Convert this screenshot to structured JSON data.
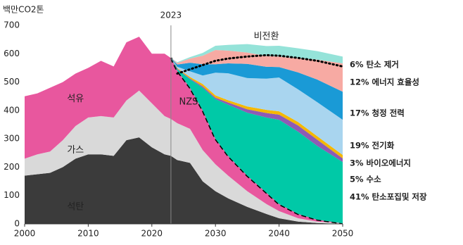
{
  "chart_data": {
    "type": "stacked_area",
    "y_axis_title": "백만CO2톤",
    "x": [
      2000,
      2002,
      2004,
      2006,
      2008,
      2010,
      2012,
      2014,
      2016,
      2018,
      2020,
      2022,
      2023,
      2024,
      2026,
      2028,
      2030,
      2032,
      2035,
      2038,
      2040,
      2043,
      2046,
      2050
    ],
    "xlim": [
      2000,
      2050
    ],
    "xticks": [
      2000,
      2010,
      2020,
      2030,
      2040,
      2050
    ],
    "ylim": [
      0,
      700
    ],
    "yticks": [
      0,
      100,
      200,
      300,
      400,
      500,
      600,
      700
    ],
    "grid": false,
    "reference_x": 2023,
    "nzs_label": "NZS",
    "series": [
      {
        "name": "석탄",
        "color": "#3b3b3b",
        "values": [
          170,
          175,
          180,
          200,
          230,
          245,
          245,
          240,
          295,
          305,
          270,
          245,
          240,
          225,
          215,
          150,
          115,
          90,
          60,
          35,
          20,
          8,
          3,
          0
        ]
      },
      {
        "name": "가스",
        "color": "#d9d9d9",
        "values": [
          60,
          70,
          75,
          95,
          115,
          130,
          135,
          135,
          140,
          165,
          155,
          135,
          130,
          130,
          120,
          110,
          95,
          80,
          55,
          35,
          25,
          12,
          5,
          2
        ]
      },
      {
        "name": "석유",
        "color": "#e8579e",
        "values": [
          220,
          215,
          225,
          205,
          185,
          175,
          195,
          180,
          205,
          190,
          175,
          220,
          215,
          185,
          145,
          140,
          90,
          70,
          55,
          40,
          25,
          15,
          7,
          0
        ]
      },
      {
        "name": "41% 탄소포집및 저장",
        "color": "#00c9a7",
        "values": [
          null,
          null,
          null,
          null,
          null,
          null,
          null,
          null,
          null,
          null,
          null,
          null,
          0,
          5,
          30,
          80,
          140,
          180,
          222,
          265,
          297,
          290,
          260,
          216
        ]
      },
      {
        "name": "5% 수소",
        "color": "#8e5bb5",
        "values": [
          null,
          null,
          null,
          null,
          null,
          null,
          null,
          null,
          null,
          null,
          null,
          null,
          0,
          2,
          3,
          5,
          5,
          8,
          12,
          16,
          18,
          22,
          22,
          13
        ]
      },
      {
        "name": "3% 바이오에너지",
        "color": "#f5b800",
        "values": [
          null,
          null,
          null,
          null,
          null,
          null,
          null,
          null,
          null,
          null,
          null,
          null,
          0,
          2,
          5,
          8,
          8,
          8,
          10,
          11,
          12,
          12,
          12,
          12
        ]
      },
      {
        "name": "19% 전기화",
        "color": "#a9d5ef",
        "values": [
          null,
          null,
          null,
          null,
          null,
          null,
          null,
          null,
          null,
          null,
          null,
          null,
          0,
          5,
          20,
          30,
          80,
          95,
          100,
          110,
          119,
          115,
          120,
          124
        ]
      },
      {
        "name": "17% 청정 전력",
        "color": "#1a9ad6",
        "values": [
          null,
          null,
          null,
          null,
          null,
          null,
          null,
          null,
          null,
          null,
          null,
          null,
          0,
          8,
          30,
          40,
          30,
          35,
          50,
          42,
          37,
          60,
          80,
          99
        ]
      },
      {
        "name": "12% 에너지 효율성",
        "color": "#f7aaa3",
        "values": [
          null,
          null,
          null,
          null,
          null,
          null,
          null,
          null,
          null,
          null,
          null,
          null,
          0,
          5,
          15,
          30,
          50,
          45,
          40,
          38,
          37,
          50,
          70,
          100
        ]
      },
      {
        "name": "6% 탄소 제거",
        "color": "#95e3d9",
        "values": [
          null,
          null,
          null,
          null,
          null,
          null,
          null,
          null,
          null,
          null,
          null,
          null,
          0,
          3,
          5,
          10,
          15,
          20,
          30,
          35,
          38,
          35,
          30,
          24
        ]
      }
    ],
    "reference_line": {
      "name": "비전환",
      "values": [
        null,
        null,
        null,
        null,
        null,
        null,
        null,
        null,
        null,
        null,
        null,
        null,
        null,
        530,
        545,
        560,
        575,
        583,
        590,
        595,
        593,
        585,
        575,
        555
      ]
    }
  }
}
